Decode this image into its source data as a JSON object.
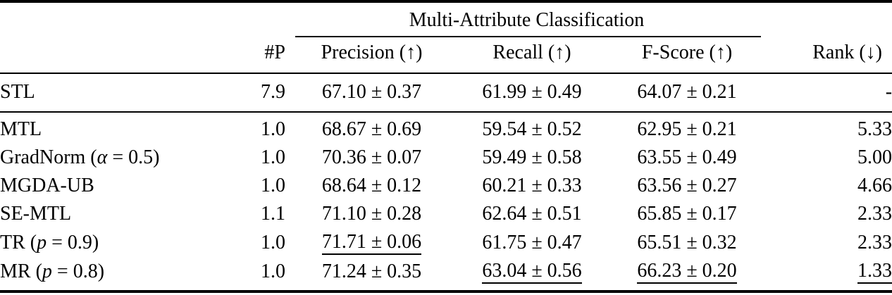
{
  "table": {
    "span_header": "Multi-Attribute Classification",
    "columns": {
      "method": "",
      "params": "#P",
      "precision": "Precision (↑)",
      "recall": "Recall (↑)",
      "fscore": "F-Score (↑)",
      "rank": "Rank (↓)"
    },
    "rows": [
      {
        "method_pre": "STL",
        "method_var": "",
        "method_post": "",
        "params": "7.9",
        "precision": "67.10 ± 0.37",
        "recall": "61.99 ± 0.49",
        "fscore": "64.07 ± 0.21",
        "rank": "-"
      },
      {
        "method_pre": "MTL",
        "method_var": "",
        "method_post": "",
        "params": "1.0",
        "precision": "68.67 ± 0.69",
        "recall": "59.54 ± 0.52",
        "fscore": "62.95 ± 0.21",
        "rank": "5.33"
      },
      {
        "method_pre": "GradNorm (",
        "method_var": "α",
        "method_post": " = 0.5)",
        "params": "1.0",
        "precision": "70.36 ± 0.07",
        "recall": "59.49 ± 0.58",
        "fscore": "63.55 ± 0.49",
        "rank": "5.00"
      },
      {
        "method_pre": "MGDA-UB",
        "method_var": "",
        "method_post": "",
        "params": "1.0",
        "precision": "68.64 ± 0.12",
        "recall": "60.21 ± 0.33",
        "fscore": "63.56 ± 0.27",
        "rank": "4.66"
      },
      {
        "method_pre": "SE-MTL",
        "method_var": "",
        "method_post": "",
        "params": "1.1",
        "precision": "71.10 ± 0.28",
        "recall": "62.64 ± 0.51",
        "fscore": "65.85 ± 0.17",
        "rank": "2.33"
      },
      {
        "method_pre": "TR (",
        "method_var": "p",
        "method_post": " = 0.9)",
        "params": "1.0",
        "precision": "71.71 ± 0.06",
        "recall": "61.75 ± 0.47",
        "fscore": "65.51 ± 0.32",
        "rank": "2.33",
        "ul": {
          "precision": true
        }
      },
      {
        "method_pre": "MR (",
        "method_var": "p",
        "method_post": " = 0.8)",
        "params": "1.0",
        "precision": "71.24 ± 0.35",
        "recall": "63.04 ± 0.56",
        "fscore": "66.23 ± 0.20",
        "rank": "1.33",
        "ul": {
          "recall": true,
          "fscore": true,
          "rank": true
        }
      }
    ]
  }
}
